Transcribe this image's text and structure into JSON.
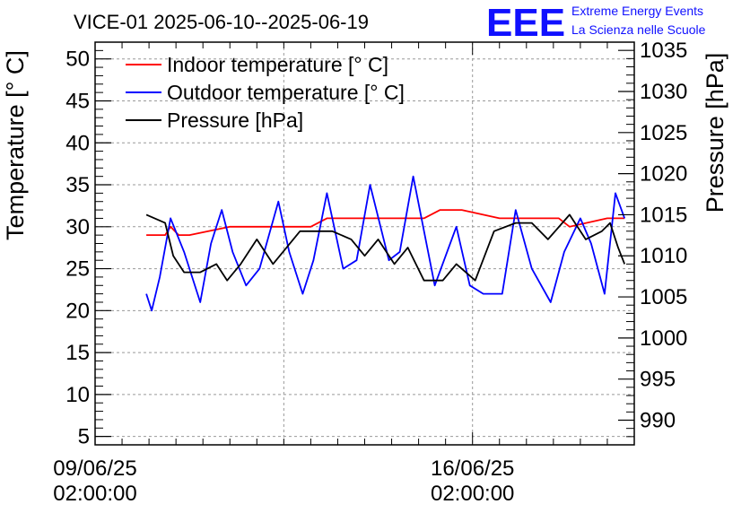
{
  "chart_data": {
    "type": "line",
    "title": "VICE-01 2025-06-10--2025-06-19",
    "ylabel": "Temperature [° C]",
    "y2label": "Pressure [hPa]",
    "xlabel": "",
    "x_range_days": [
      0,
      10
    ],
    "ylim": [
      4,
      52
    ],
    "y2lim": [
      987,
      1036
    ],
    "x_ticks": [
      {
        "day": 0,
        "line1": "09/06/25",
        "line2": "02:00:00"
      },
      {
        "day": 7,
        "line1": "16/06/25",
        "line2": "02:00:00"
      }
    ],
    "y_ticks": [
      5,
      10,
      15,
      20,
      25,
      30,
      35,
      40,
      45,
      50
    ],
    "y2_ticks": [
      990,
      995,
      1000,
      1005,
      1010,
      1015,
      1020,
      1025,
      1030,
      1035
    ],
    "grid": true,
    "legend_position": "top-left",
    "series": [
      {
        "name": "Indoor temperature [° C]",
        "color": "#ff0000",
        "axis": "left",
        "x": [
          0.95,
          1.3,
          1.4,
          1.55,
          1.75,
          2.5,
          3.0,
          4.0,
          4.3,
          5.0,
          5.6,
          6.1,
          6.4,
          6.5,
          6.8,
          7.5,
          8.0,
          8.6,
          8.8,
          9.5,
          9.82
        ],
        "y": [
          29,
          29,
          30,
          29,
          29,
          30,
          30,
          30,
          31,
          31,
          31,
          31,
          32,
          32,
          32,
          31,
          31,
          31,
          30,
          31,
          31
        ]
      },
      {
        "name": "Outdoor temperature [° C]",
        "color": "#0000ff",
        "axis": "left",
        "x": [
          0.95,
          1.05,
          1.2,
          1.4,
          1.65,
          1.95,
          2.15,
          2.35,
          2.55,
          2.8,
          3.05,
          3.4,
          3.6,
          3.85,
          4.05,
          4.3,
          4.6,
          4.85,
          5.1,
          5.45,
          5.65,
          5.9,
          6.3,
          6.7,
          6.95,
          7.2,
          7.55,
          7.8,
          8.1,
          8.45,
          8.7,
          9.0,
          9.2,
          9.45,
          9.65,
          9.82
        ],
        "y": [
          22,
          20,
          24,
          31,
          27,
          21,
          28,
          32,
          27,
          23,
          25,
          33,
          27,
          22,
          26,
          34,
          25,
          26,
          35,
          26,
          27,
          36,
          23,
          30,
          23,
          22,
          22,
          32,
          25,
          21,
          27,
          31,
          28,
          22,
          34,
          31
        ]
      },
      {
        "name": "Pressure [hPa]",
        "color": "#000000",
        "axis": "right",
        "x": [
          0.95,
          1.3,
          1.45,
          1.65,
          1.95,
          2.25,
          2.45,
          2.7,
          3.0,
          3.3,
          3.55,
          3.8,
          4.05,
          4.4,
          4.75,
          5.0,
          5.25,
          5.55,
          5.8,
          6.1,
          6.45,
          6.7,
          7.05,
          7.4,
          7.8,
          8.1,
          8.4,
          8.8,
          9.1,
          9.4,
          9.55,
          9.7,
          9.82
        ],
        "y": [
          1015,
          1014,
          1010,
          1008,
          1008,
          1009,
          1007,
          1009,
          1012,
          1009,
          1011,
          1013,
          1013,
          1013,
          1012,
          1010,
          1012,
          1009,
          1011,
          1007,
          1007,
          1009,
          1007,
          1013,
          1014,
          1014,
          1012,
          1015,
          1012,
          1013,
          1014,
          1011,
          1009
        ]
      }
    ]
  },
  "logo": {
    "big": "EEE",
    "line1": "Extreme Energy Events",
    "line2": "La Scienza nelle Scuole"
  }
}
